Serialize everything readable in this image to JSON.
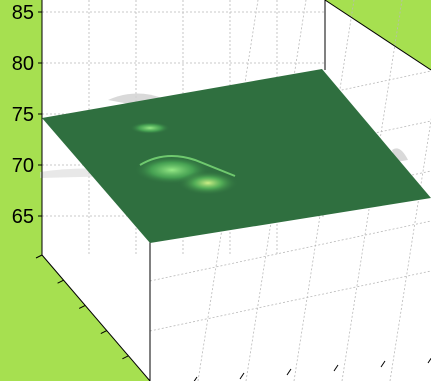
{
  "chart_data": {
    "type": "surface",
    "title": "",
    "xlabel": "",
    "ylabel": "",
    "zlabel": "",
    "z_ticks": [
      65,
      70,
      75,
      80,
      85
    ],
    "z_tick_labels": [
      "65",
      "70",
      "75",
      "80",
      "85"
    ],
    "surface_base_level": 74.3,
    "features": [
      {
        "name": "bump",
        "peak_z": 76.5
      },
      {
        "name": "dip",
        "peak_z": 73.0
      }
    ],
    "grid": true,
    "colors": {
      "background": "#a6e050",
      "pane": "#ffffff",
      "surface": "#2f6f3f",
      "surface_highlight": "#7fe27a"
    }
  }
}
